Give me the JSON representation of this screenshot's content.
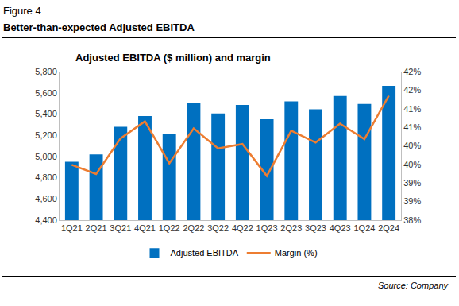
{
  "header": {
    "figure": "Figure 4",
    "heading": "Better-than-expected Adjusted EBITDA"
  },
  "footer": {
    "source": "Source: Company"
  },
  "chart_data": {
    "type": "bar",
    "title": "Adjusted EBITDA ($ million) and margin",
    "categories": [
      "1Q21",
      "2Q21",
      "3Q21",
      "4Q21",
      "1Q22",
      "2Q22",
      "3Q22",
      "4Q22",
      "1Q23",
      "2Q23",
      "3Q23",
      "4Q23",
      "1Q24",
      "2Q24"
    ],
    "series": [
      {
        "name": "Adjusted EBITDA",
        "type": "bar",
        "color": "#0070c0",
        "values": [
          4950,
          5020,
          5280,
          5380,
          5215,
          5505,
          5405,
          5485,
          5350,
          5520,
          5445,
          5570,
          5495,
          5665
        ]
      },
      {
        "name": "Margin (%)",
        "type": "line",
        "color": "#ed7d31",
        "axis": "y2",
        "line_style": "solid",
        "values": [
          39.49,
          39.24,
          40.2,
          40.66,
          39.53,
          40.47,
          39.93,
          40.05,
          39.19,
          40.41,
          40.09,
          40.6,
          40.18,
          41.35
        ]
      }
    ],
    "ylim": [
      4400,
      5800
    ],
    "yticks": [
      {
        "value": 4400,
        "label": "4,400"
      },
      {
        "value": 4600,
        "label": "4,600"
      },
      {
        "value": 4800,
        "label": "4,800"
      },
      {
        "value": 5000,
        "label": "5,000"
      },
      {
        "value": 5200,
        "label": "5,200"
      },
      {
        "value": 5400,
        "label": "5,400"
      },
      {
        "value": 5600,
        "label": "5,600"
      },
      {
        "value": 5800,
        "label": "5,800"
      }
    ],
    "y2lim": [
      38,
      42
    ],
    "y2ticks": [
      {
        "value": 38,
        "label": "38%"
      },
      {
        "value": 38.5,
        "label": "39%"
      },
      {
        "value": 39,
        "label": "39%"
      },
      {
        "value": 39.5,
        "label": "40%"
      },
      {
        "value": 40,
        "label": "40%"
      },
      {
        "value": 40.5,
        "label": "41%"
      },
      {
        "value": 41,
        "label": "41%"
      },
      {
        "value": 41.5,
        "label": "42%"
      },
      {
        "value": 42,
        "label": "42%"
      }
    ],
    "grid": false,
    "legend": "bottom",
    "data_labels": false
  }
}
